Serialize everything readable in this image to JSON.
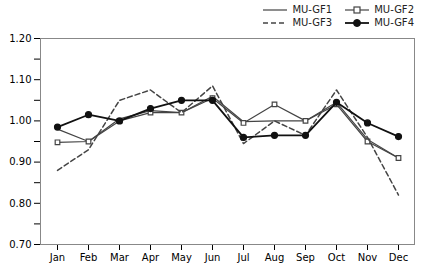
{
  "chart_data": {
    "type": "line",
    "categories": [
      "Jan",
      "Feb",
      "Mar",
      "Apr",
      "May",
      "Jun",
      "Jul",
      "Aug",
      "Sep",
      "Oct",
      "Nov",
      "Dec"
    ],
    "series": [
      {
        "name": "MU-GF1",
        "color": "#444444",
        "line_style": "solid",
        "values": [
          0.98,
          0.95,
          1.005,
          1.025,
          1.02,
          1.06,
          0.998,
          1.0,
          1.0,
          1.045,
          0.955,
          0.91
        ]
      },
      {
        "name": "MU-GF2",
        "color": "#444444",
        "line_style": "solid",
        "marker": "square",
        "values": [
          0.948,
          0.95,
          1.0,
          1.02,
          1.02,
          1.055,
          0.995,
          1.04,
          1.0,
          1.04,
          0.95,
          0.91
        ]
      },
      {
        "name": "MU-GF3",
        "color": "#444444",
        "line_style": "dashed",
        "values": [
          0.88,
          0.93,
          1.05,
          1.075,
          1.02,
          1.085,
          0.945,
          1.0,
          0.965,
          1.075,
          0.96,
          0.82
        ]
      },
      {
        "name": "MU-GF4",
        "color": "#111111",
        "line_style": "solid",
        "marker": "circle",
        "values": [
          0.985,
          1.015,
          1.0,
          1.03,
          1.05,
          1.05,
          0.96,
          0.965,
          0.965,
          1.045,
          0.995,
          0.962
        ]
      }
    ],
    "ylim": [
      0.7,
      1.2
    ],
    "yticks": [
      {
        "value": 0.7,
        "label": "0.70"
      },
      {
        "value": 0.75,
        "label": null
      },
      {
        "value": 0.8,
        "label": "0.80"
      },
      {
        "value": 0.85,
        "label": null
      },
      {
        "value": 0.9,
        "label": "0.90"
      },
      {
        "value": 0.95,
        "label": null
      },
      {
        "value": 1.0,
        "label": "1.00"
      },
      {
        "value": 1.05,
        "label": null
      },
      {
        "value": 1.1,
        "label": "1.10"
      },
      {
        "value": 1.15,
        "label": null
      },
      {
        "value": 1.2,
        "label": "1.20"
      }
    ],
    "grid": false,
    "legend": "upper right"
  }
}
